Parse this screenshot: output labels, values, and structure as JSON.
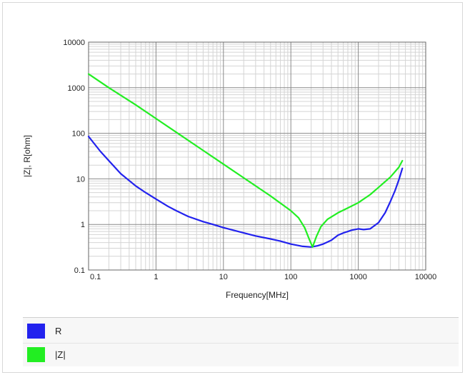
{
  "chart_data": {
    "type": "line",
    "x_scale": "log",
    "y_scale": "log",
    "xlim": [
      0.1,
      10000
    ],
    "ylim": [
      0.1,
      10000
    ],
    "xlabel": "Frequency[MHz]",
    "ylabel": "|Z|, R[ohm]",
    "x_ticks": [
      "0.1",
      "1",
      "10",
      "100",
      "1000",
      "10000"
    ],
    "y_ticks": [
      "0.1",
      "1",
      "10",
      "100",
      "1000",
      "10000"
    ],
    "grid": true,
    "legend_position": "bottom",
    "series": [
      {
        "name": "R",
        "color": "#2222ee",
        "x": [
          0.1,
          0.15,
          0.2,
          0.3,
          0.5,
          0.7,
          1,
          1.5,
          2,
          3,
          5,
          7,
          10,
          20,
          30,
          50,
          70,
          100,
          150,
          200,
          250,
          300,
          400,
          500,
          600,
          700,
          800,
          1000,
          1200,
          1500,
          2000,
          2500,
          3000,
          3500,
          4000,
          4500
        ],
        "y": [
          85,
          40,
          25,
          13,
          7,
          5,
          3.6,
          2.5,
          2,
          1.5,
          1.15,
          1,
          0.85,
          0.65,
          0.56,
          0.48,
          0.43,
          0.37,
          0.33,
          0.32,
          0.34,
          0.37,
          0.45,
          0.58,
          0.65,
          0.7,
          0.75,
          0.8,
          0.77,
          0.8,
          1.1,
          1.8,
          3.2,
          5.5,
          9.5,
          17
        ]
      },
      {
        "name": "|Z|",
        "color": "#22ee22",
        "x": [
          0.1,
          0.2,
          0.5,
          1,
          2,
          5,
          10,
          20,
          50,
          100,
          130,
          160,
          190,
          210,
          240,
          280,
          350,
          500,
          700,
          1000,
          1500,
          2000,
          3000,
          4000,
          4500
        ],
        "y": [
          2000,
          1000,
          420,
          210,
          105,
          42,
          21,
          10.5,
          4.2,
          2,
          1.4,
          0.85,
          0.45,
          0.32,
          0.55,
          0.9,
          1.3,
          1.8,
          2.3,
          3,
          4.5,
          6.5,
          11,
          18,
          25
        ]
      }
    ]
  }
}
